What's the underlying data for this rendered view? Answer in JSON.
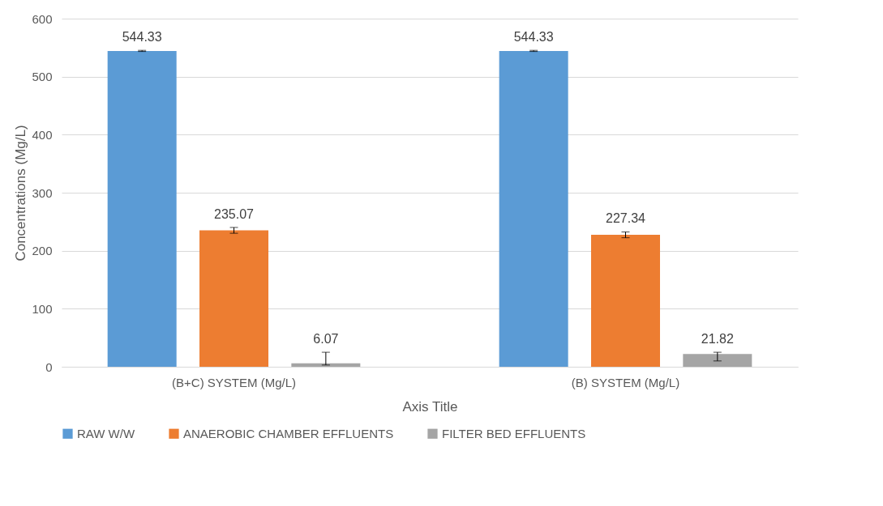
{
  "chart_data": {
    "type": "bar",
    "xlabel": "Axis Title",
    "ylabel": "Concentrations (Mg/L)",
    "categories": [
      "(B+C) SYSTEM (Mg/L)",
      "(B) SYSTEM (Mg/L)"
    ],
    "series": [
      {
        "name": "RAW W/W",
        "color": "#5b9bd5",
        "values": [
          544.33,
          544.33
        ],
        "errors": [
          1,
          1
        ]
      },
      {
        "name": "ANAEROBIC CHAMBER EFFLUENTS",
        "color": "#ed7d31",
        "values": [
          235.07,
          227.34
        ],
        "errors": [
          5,
          5
        ]
      },
      {
        "name": "FILTER BED EFFLUENTS",
        "color": "#a5a5a5",
        "values": [
          6.07,
          21.82
        ],
        "errors": [
          [
            3,
            25
          ],
          [
            10,
            25
          ]
        ]
      }
    ],
    "ylim": [
      0,
      600
    ],
    "yticks": [
      0,
      100,
      200,
      300,
      400,
      500,
      600
    ],
    "grid": "y",
    "legend": "bottom",
    "data_labels": true
  }
}
